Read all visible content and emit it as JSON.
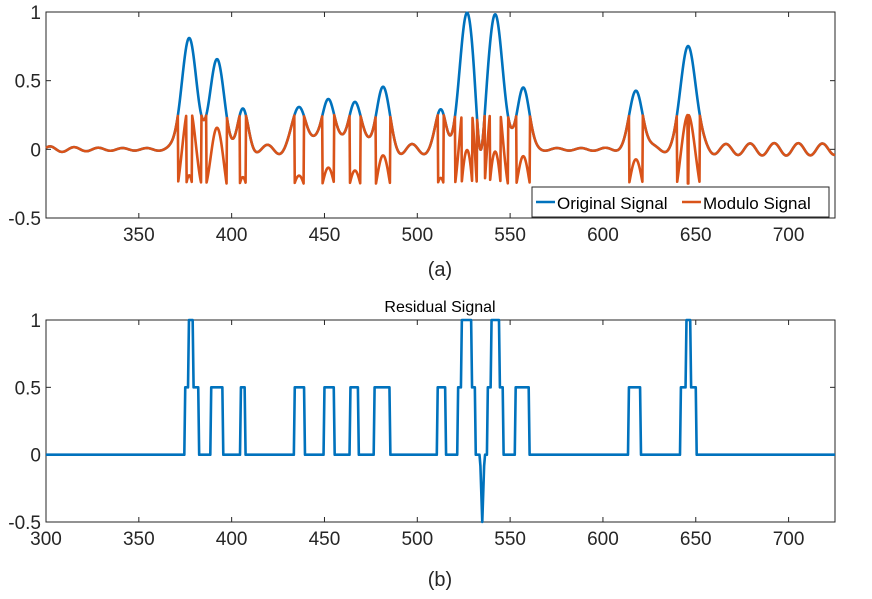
{
  "colors": {
    "original": "#0072BD",
    "modulo": "#D95319",
    "axis": "#262626"
  },
  "chart_data": [
    {
      "type": "line",
      "panel_label": "(a)",
      "title": "",
      "xlim": [
        300,
        725
      ],
      "ylim": [
        -0.5,
        1
      ],
      "x_ticks": [
        "350",
        "400",
        "450",
        "500",
        "550",
        "600",
        "650",
        "700"
      ],
      "y_ticks": [
        "-0.5",
        "0",
        "0.5",
        "1"
      ],
      "legend": {
        "placement": "bottom-right",
        "entries": [
          "Original Signal",
          "Modulo Signal"
        ]
      },
      "pulses": [
        {
          "x": 377,
          "a": 0.81,
          "w": 5.5
        },
        {
          "x": 392,
          "a": 0.64,
          "w": 5.5
        },
        {
          "x": 406,
          "a": 0.27,
          "w": 4
        },
        {
          "x": 437,
          "a": 0.33,
          "w": 5
        },
        {
          "x": 452,
          "a": 0.41,
          "w": 4.5
        },
        {
          "x": 466,
          "a": 0.38,
          "w": 4.5
        },
        {
          "x": 481,
          "a": 0.45,
          "w": 5
        },
        {
          "x": 513,
          "a": 0.28,
          "w": 4
        },
        {
          "x": 527,
          "a": 1.0,
          "w": 5.5
        },
        {
          "x": 542,
          "a": 1.0,
          "w": 5.5
        },
        {
          "x": 534,
          "a": -0.33,
          "w": 2.8
        },
        {
          "x": 557,
          "a": 0.46,
          "w": 4.5
        },
        {
          "x": 618,
          "a": 0.43,
          "w": 5
        },
        {
          "x": 646,
          "a": 0.78,
          "w": 5.5
        }
      ],
      "background_ripple": {
        "amplitude": 0.045,
        "period": 13
      },
      "modulo_threshold": 0.25,
      "series": [
        {
          "name": "Original Signal",
          "color_key": "original"
        },
        {
          "name": "Modulo Signal",
          "color_key": "modulo"
        }
      ]
    },
    {
      "type": "line",
      "panel_label": "(b)",
      "title": "Residual Signal",
      "xlim": [
        300,
        725
      ],
      "ylim": [
        -0.5,
        1
      ],
      "x_ticks": [
        "300",
        "350",
        "400",
        "450",
        "500",
        "550",
        "600",
        "650",
        "700"
      ],
      "y_ticks": [
        "-0.5",
        "0",
        "0.5",
        "1"
      ],
      "segments": [
        {
          "x0": 375,
          "x1": 382,
          "level": 0.5
        },
        {
          "x0": 377,
          "x1": 379,
          "level": 1
        },
        {
          "x0": 389,
          "x1": 395,
          "level": 0.5
        },
        {
          "x0": 405,
          "x1": 407,
          "level": 0.5
        },
        {
          "x0": 434,
          "x1": 439,
          "level": 0.5
        },
        {
          "x0": 450,
          "x1": 455,
          "level": 0.5
        },
        {
          "x0": 464,
          "x1": 468,
          "level": 0.5
        },
        {
          "x0": 477,
          "x1": 485,
          "level": 0.5
        },
        {
          "x0": 511,
          "x1": 515,
          "level": 0.5
        },
        {
          "x0": 522,
          "x1": 531,
          "level": 0.5
        },
        {
          "x0": 524,
          "x1": 529,
          "level": 1
        },
        {
          "x0": 538,
          "x1": 546,
          "level": 0.5
        },
        {
          "x0": 540,
          "x1": 544,
          "level": 1
        },
        {
          "x0": 553,
          "x1": 560,
          "level": 0.5
        },
        {
          "x0": 614,
          "x1": 620,
          "level": 0.5
        },
        {
          "x0": 642,
          "x1": 650,
          "level": 0.5
        },
        {
          "x0": 645,
          "x1": 647,
          "level": 1
        }
      ],
      "dips": [
        {
          "x": 535,
          "level": -0.5
        }
      ],
      "series": [
        {
          "name": "",
          "color_key": "original"
        }
      ]
    }
  ]
}
